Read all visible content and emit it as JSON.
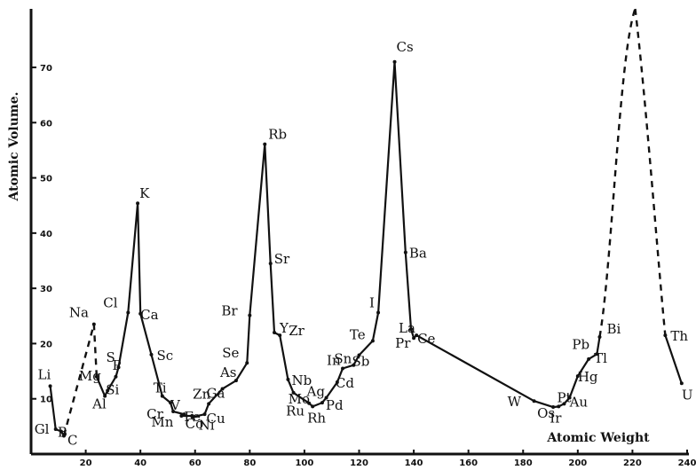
{
  "chart_data": {
    "type": "line",
    "ylabel": "Atomic Volume.",
    "xlabel": "Atomic Weight",
    "xlim": [
      0,
      240
    ],
    "ylim": [
      0,
      80
    ],
    "x_ticks": [
      "20",
      "40",
      "60",
      "80",
      "100",
      "120",
      "140",
      "160",
      "180",
      "200",
      "220",
      "240"
    ],
    "y_ticks": [
      "10",
      "20",
      "30",
      "40",
      "50",
      "60",
      "70"
    ],
    "grid": false,
    "series": [
      {
        "points": [
          {
            "x": 7,
            "y": 12.3,
            "label": "Li"
          },
          {
            "x": 9,
            "y": 4.5,
            "label": "Gl"
          },
          {
            "x": 11,
            "y": 4.1,
            "label": "B"
          },
          {
            "x": 12,
            "y": 3.3,
            "label": "C"
          },
          {
            "x": 23,
            "y": 23.5,
            "label": "Na"
          },
          {
            "x": 24,
            "y": 14,
            "label": "Mg"
          },
          {
            "x": 27,
            "y": 10.5,
            "label": "Al"
          },
          {
            "x": 28,
            "y": 11.5,
            "label": "Si"
          },
          {
            "x": 31,
            "y": 14,
            "label": "P"
          },
          {
            "x": 32,
            "y": 15.7,
            "label": "S"
          },
          {
            "x": 35.5,
            "y": 25.6,
            "label": "Cl"
          },
          {
            "x": 39,
            "y": 45.4,
            "label": "K"
          },
          {
            "x": 40,
            "y": 25.4,
            "label": "Ca"
          },
          {
            "x": 44,
            "y": 18,
            "label": "Sc"
          },
          {
            "x": 48,
            "y": 10.5,
            "label": "Ti"
          },
          {
            "x": 51,
            "y": 9.3,
            "label": "V"
          },
          {
            "x": 52,
            "y": 7.7,
            "label": "Cr"
          },
          {
            "x": 55,
            "y": 6.9,
            "label": "Mn"
          },
          {
            "x": 56,
            "y": 7.2,
            "label": "Fe"
          },
          {
            "x": 59,
            "y": 6.9,
            "label": "Co"
          },
          {
            "x": 59,
            "y": 6.7,
            "label": "Ni"
          },
          {
            "x": 63.5,
            "y": 7.2,
            "label": "Cu"
          },
          {
            "x": 65,
            "y": 9.1,
            "label": "Zn"
          },
          {
            "x": 70,
            "y": 11.8,
            "label": "Ga"
          },
          {
            "x": 75,
            "y": 13.3,
            "label": "As"
          },
          {
            "x": 79,
            "y": 16.5,
            "label": "Se"
          },
          {
            "x": 80,
            "y": 25.1,
            "label": "Br"
          },
          {
            "x": 85.5,
            "y": 56.1,
            "label": "Rb"
          },
          {
            "x": 87.6,
            "y": 34.5,
            "label": "Sr"
          },
          {
            "x": 89,
            "y": 22,
            "label": "Y"
          },
          {
            "x": 91,
            "y": 21.5,
            "label": "Zr"
          },
          {
            "x": 94,
            "y": 13.5,
            "label": "Nb"
          },
          {
            "x": 96,
            "y": 11.1,
            "label": "Mo"
          },
          {
            "x": 101.7,
            "y": 9.2,
            "label": "Ru"
          },
          {
            "x": 103,
            "y": 8.6,
            "label": "Rh"
          },
          {
            "x": 106.5,
            "y": 9.3,
            "label": "Pd"
          },
          {
            "x": 108,
            "y": 10.2,
            "label": "Ag"
          },
          {
            "x": 112,
            "y": 13,
            "label": "Cd"
          },
          {
            "x": 114,
            "y": 15.5,
            "label": "In"
          },
          {
            "x": 118,
            "y": 16.1,
            "label": "Sn"
          },
          {
            "x": 120,
            "y": 17.9,
            "label": "Sb"
          },
          {
            "x": 125,
            "y": 20.5,
            "label": "Te"
          },
          {
            "x": 127,
            "y": 25.6,
            "label": "I"
          },
          {
            "x": 133,
            "y": 71,
            "label": "Cs"
          },
          {
            "x": 137,
            "y": 36.5,
            "label": "Ba"
          },
          {
            "x": 139,
            "y": 22.6,
            "label": "La"
          },
          {
            "x": 140,
            "y": 21,
            "label": "Ce"
          },
          {
            "x": 141,
            "y": 21.5,
            "label": "Pr"
          },
          {
            "x": 184,
            "y": 9.6,
            "label": "W"
          },
          {
            "x": 191,
            "y": 8.5,
            "label": "Os"
          },
          {
            "x": 193,
            "y": 8.6,
            "label": "Ir"
          },
          {
            "x": 195,
            "y": 9.1,
            "label": "Pt"
          },
          {
            "x": 197,
            "y": 10.2,
            "label": "Au"
          },
          {
            "x": 200,
            "y": 14.1,
            "label": "Hg"
          },
          {
            "x": 204,
            "y": 17.2,
            "label": "Tl"
          },
          {
            "x": 207,
            "y": 18.1,
            "label": "Pb"
          },
          {
            "x": 208,
            "y": 21.2,
            "label": "Bi"
          },
          {
            "x": 232,
            "y": 21.5,
            "label": "Th"
          },
          {
            "x": 238,
            "y": 12.8,
            "label": "U"
          }
        ]
      }
    ]
  }
}
